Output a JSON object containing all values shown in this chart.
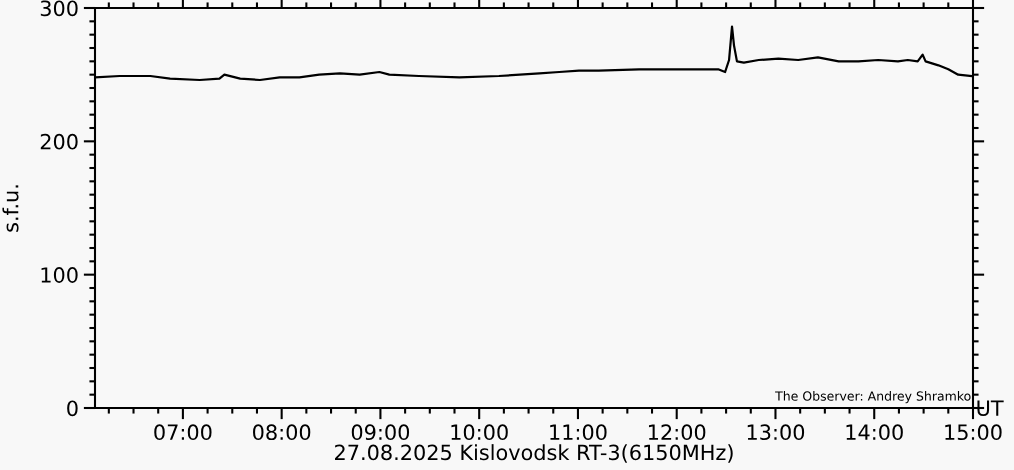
{
  "chart_data": {
    "type": "line",
    "xlabel": "27.08.2025 Kislovodsk RT-3(6150MHz)",
    "ylabel": "s.f.u.",
    "annotations": [
      "UT",
      "The Observer: Andrey Shramko"
    ],
    "x": [
      6.11,
      6.36,
      6.67,
      6.87,
      7.17,
      7.37,
      7.42,
      7.58,
      7.78,
      7.98,
      8.18,
      8.38,
      8.59,
      8.79,
      8.99,
      9.09,
      9.39,
      9.8,
      10.2,
      10.61,
      10.81,
      11.01,
      11.21,
      11.62,
      12.02,
      12.22,
      12.42,
      12.49,
      12.53,
      12.56,
      12.58,
      12.61,
      12.68,
      12.83,
      13.03,
      13.23,
      13.43,
      13.64,
      13.84,
      14.04,
      14.24,
      14.34,
      14.44,
      14.49,
      14.52,
      14.65,
      14.75,
      14.85,
      14.98
    ],
    "series": [
      {
        "color": "#000000",
        "values": [
          248,
          249,
          249,
          247,
          246,
          247,
          250,
          247,
          246,
          248,
          248,
          250,
          251,
          250,
          252,
          250,
          249,
          248,
          249,
          251,
          252,
          253,
          253,
          254,
          254,
          254,
          254,
          252,
          261,
          286,
          272,
          260,
          259,
          261,
          262,
          261,
          263,
          260,
          260,
          261,
          260,
          261,
          260,
          265,
          260,
          257,
          254,
          250,
          249
        ]
      }
    ],
    "xlim": [
      6.11,
      15
    ],
    "ylim": [
      0,
      300
    ],
    "xticks": [
      {
        "value": 7,
        "label": "07:00"
      },
      {
        "value": 8,
        "label": "08:00"
      },
      {
        "value": 9,
        "label": "09:00"
      },
      {
        "value": 10,
        "label": "10:00"
      },
      {
        "value": 11,
        "label": "11:00"
      },
      {
        "value": 12,
        "label": "12:00"
      },
      {
        "value": 13,
        "label": "13:00"
      },
      {
        "value": 14,
        "label": "14:00"
      },
      {
        "value": 15,
        "label": "15:00"
      }
    ],
    "yticks": [
      0,
      100,
      200,
      300
    ],
    "grid": false,
    "legend": false,
    "marker": "none",
    "line_style": "solid"
  }
}
